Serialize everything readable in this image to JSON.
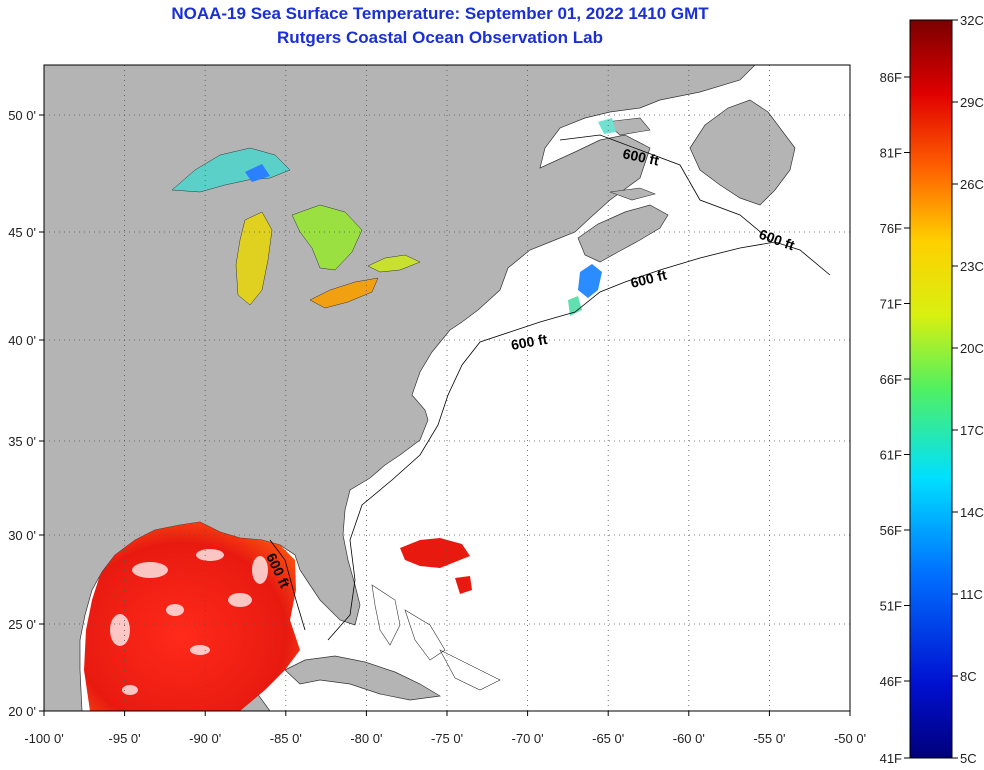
{
  "title": "NOAA-19 Sea Surface Temperature:  September 01, 2022 1410 GMT",
  "subtitle": "Rutgers Coastal Ocean Observation Lab",
  "map": {
    "lon_ticks": [
      "-100 0'",
      "-95 0'",
      "-90 0'",
      "-85 0'",
      "-80 0'",
      "-75 0'",
      "-70 0'",
      "-65 0'",
      "-60 0'",
      "-55 0'",
      "-50 0'"
    ],
    "lat_ticks": [
      "20 0'",
      "25 0'",
      "30 0'",
      "35 0'",
      "40 0'",
      "45 0'",
      "50 0'"
    ],
    "contour_label": "600 ft",
    "colors": {
      "land": "#b4b4b4",
      "ocean": "#ffffff",
      "grid": "#555555"
    }
  },
  "colorbar": {
    "celsius": [
      "32C",
      "29C",
      "26C",
      "23C",
      "20C",
      "17C",
      "14C",
      "11C",
      "8C",
      "5C"
    ],
    "fahrenheit": [
      "86F",
      "81F",
      "76F",
      "71F",
      "66F",
      "61F",
      "56F",
      "51F",
      "46F",
      "41F"
    ]
  }
}
